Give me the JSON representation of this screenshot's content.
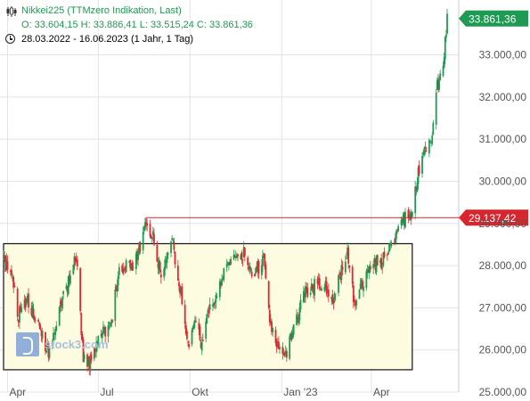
{
  "header": {
    "instrument": "Nikkei225 (TTMzero Indikation, Last)",
    "ohlc": "O: 33.604,15  H: 33.886,41  L: 33.515,24  C: 33.861,36",
    "period": "28.03.2022 - 16.06.2023  (1 Jahr, 1 Tag)",
    "watermark": "stock3.com"
  },
  "colors": {
    "up": "#1e9a52",
    "down": "#e0262e",
    "box_fill": "#fdfbe0",
    "resistance": "#d9262e",
    "last_badge": "#1e9a52"
  },
  "icons": [
    "candlestick-icon",
    "clock-icon",
    "stock3-logo-icon"
  ],
  "chart_data": {
    "type": "candlestick",
    "title": "Nikkei225 (TTMzero Indikation, Last)",
    "x_range": [
      "2022-03-28",
      "2023-06-16"
    ],
    "x_ticks": [
      {
        "label": "Apr",
        "date": "2022-04-01"
      },
      {
        "label": "Jul",
        "date": "2022-07-01"
      },
      {
        "label": "Okt",
        "date": "2022-10-01"
      },
      {
        "label": "Jan '23",
        "date": "2023-01-01"
      },
      {
        "label": "Apr",
        "date": "2023-04-01"
      }
    ],
    "y_range": [
      25000,
      34300
    ],
    "y_ticks": [
      {
        "label": "25.000,00",
        "value": 25000
      },
      {
        "label": "26.000,00",
        "value": 26000
      },
      {
        "label": "27.000,00",
        "value": 27000
      },
      {
        "label": "28.000,00",
        "value": 28000
      },
      {
        "label": "29.000,00",
        "value": 29000
      },
      {
        "label": "30.000,00",
        "value": 30000
      },
      {
        "label": "31.000,00",
        "value": 31000
      },
      {
        "label": "32.000,00",
        "value": 32000
      },
      {
        "label": "33.000,00",
        "value": 33000
      }
    ],
    "path": [
      [
        "2022-03-28",
        28100
      ],
      [
        "2022-04-05",
        27800
      ],
      [
        "2022-04-12",
        26800
      ],
      [
        "2022-04-20",
        27200
      ],
      [
        "2022-05-02",
        26700
      ],
      [
        "2022-05-12",
        25900
      ],
      [
        "2022-05-20",
        26700
      ],
      [
        "2022-06-01",
        27600
      ],
      [
        "2022-06-09",
        28200
      ],
      [
        "2022-06-16",
        25800
      ],
      [
        "2022-06-22",
        25700
      ],
      [
        "2022-07-04",
        26400
      ],
      [
        "2022-07-13",
        26500
      ],
      [
        "2022-07-22",
        27900
      ],
      [
        "2022-08-05",
        28000
      ],
      [
        "2022-08-12",
        28500
      ],
      [
        "2022-08-18",
        29100
      ],
      [
        "2022-08-26",
        28600
      ],
      [
        "2022-09-02",
        27700
      ],
      [
        "2022-09-13",
        28600
      ],
      [
        "2022-09-22",
        27300
      ],
      [
        "2022-09-30",
        26000
      ],
      [
        "2022-10-04",
        26700
      ],
      [
        "2022-10-12",
        26200
      ],
      [
        "2022-10-20",
        26900
      ],
      [
        "2022-10-31",
        27600
      ],
      [
        "2022-11-11",
        28100
      ],
      [
        "2022-11-25",
        28300
      ],
      [
        "2022-12-02",
        27800
      ],
      [
        "2022-12-14",
        28100
      ],
      [
        "2022-12-20",
        26600
      ],
      [
        "2022-12-29",
        26000
      ],
      [
        "2023-01-05",
        25800
      ],
      [
        "2023-01-12",
        26500
      ],
      [
        "2023-01-25",
        27400
      ],
      [
        "2023-02-10",
        27600
      ],
      [
        "2023-02-22",
        27200
      ],
      [
        "2023-03-08",
        28400
      ],
      [
        "2023-03-15",
        27000
      ],
      [
        "2023-03-22",
        27500
      ],
      [
        "2023-03-31",
        28000
      ],
      [
        "2023-04-12",
        28100
      ],
      [
        "2023-04-24",
        28600
      ],
      [
        "2023-05-02",
        29100
      ],
      [
        "2023-05-10",
        29100
      ],
      [
        "2023-05-17",
        30100
      ],
      [
        "2023-05-24",
        30800
      ],
      [
        "2023-05-31",
        31000
      ],
      [
        "2023-06-06",
        32300
      ],
      [
        "2023-06-12",
        32700
      ],
      [
        "2023-06-16",
        33861
      ]
    ],
    "consolidation_box": {
      "from": "2022-03-28",
      "to": "2023-05-12",
      "low": 25530,
      "high": 28520
    },
    "resistance_line": {
      "from": "2022-08-18",
      "value": 29137.42,
      "label": "29.137,42"
    },
    "last_value": {
      "value": 33861.36,
      "label": "33.861,36"
    }
  }
}
